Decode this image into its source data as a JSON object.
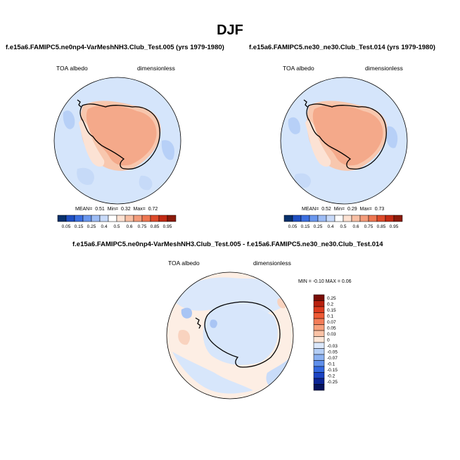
{
  "figure": {
    "title": "DJF"
  },
  "panels": [
    {
      "case": "f.e15a6.FAMIPC5.ne0np4-VarMeshNH3.Club_Test.005 (yrs 1979-1980)",
      "variable": "TOA albedo",
      "units": "dimensionless",
      "stats": {
        "mean_label": "MEAN=",
        "mean": "0.51",
        "min_label": "Min=",
        "min": "0.32",
        "max_label": "Max=",
        "max": "0.72"
      }
    },
    {
      "case": "f.e15a6.FAMIPC5.ne30_ne30.Club_Test.014 (yrs 1979-1980)",
      "variable": "TOA albedo",
      "units": "dimensionless",
      "stats": {
        "mean_label": "MEAN=",
        "mean": "0.52",
        "min_label": "Min=",
        "min": "0.29",
        "max_label": "Max=",
        "max": "0.73"
      }
    }
  ],
  "difference": {
    "title": "f.e15a6.FAMIPC5.ne0np4-VarMeshNH3.Club_Test.005 - f.e15a6.FAMIPC5.ne30_ne30.Club_Test.014",
    "variable": "TOA albedo",
    "units": "dimensionless",
    "stats_text": "MIN =  -0.10 MAX =   0.06"
  },
  "colorbar_abs": {
    "labels": [
      "0.05",
      "0.15",
      "0.25",
      "0.4",
      "0.5",
      "0.6",
      "0.75",
      "0.85",
      "0.95"
    ],
    "colors": [
      "#08306b",
      "#1f4fc2",
      "#3b6fe0",
      "#6a97ee",
      "#9dbcf5",
      "#c8daf9",
      "#ffffff",
      "#fde2d2",
      "#f8bfa4",
      "#f39b7a",
      "#ee7752",
      "#dd4a2a",
      "#c22a14",
      "#8b1a0a"
    ]
  },
  "colorbar_diff": {
    "labels": [
      "0.25",
      "0.2",
      "0.15",
      "0.1",
      "0.07",
      "0.05",
      "0.03",
      "0",
      "-0.03",
      "-0.05",
      "-0.07",
      "-0.1",
      "-0.15",
      "-0.2",
      "-0.25"
    ],
    "colors": [
      "#7a0d05",
      "#b8200e",
      "#dc3a1e",
      "#ee5a35",
      "#f37d58",
      "#f7a07c",
      "#fac3a6",
      "#fde7d8",
      "#dbe8fb",
      "#b4cef6",
      "#8bb1f1",
      "#5f8feb",
      "#3368e0",
      "#1c44c4",
      "#0c2596",
      "#06145f"
    ]
  }
}
